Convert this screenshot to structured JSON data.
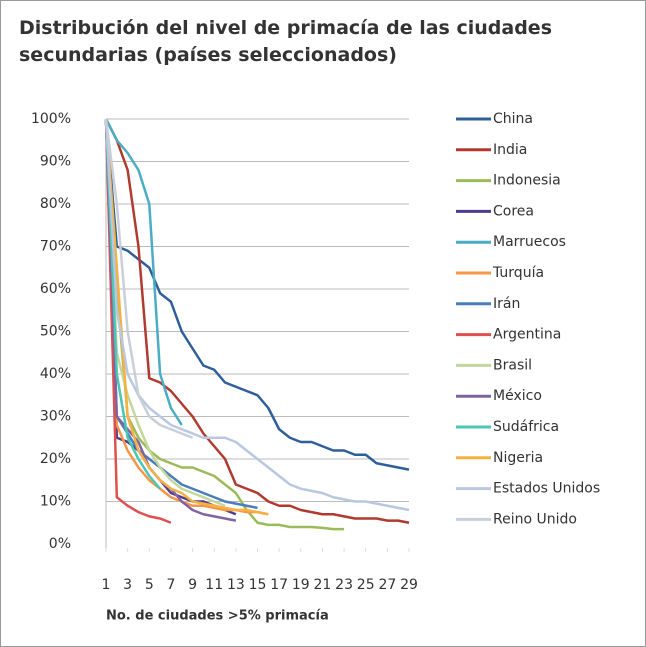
{
  "chart_data": {
    "type": "line",
    "title": "Distribución del nivel de primacía de las ciudades secundarias (países seleccionados)",
    "x_label": "No. de ciudades >5% primacía",
    "x": [
      1,
      2,
      3,
      4,
      5,
      6,
      7,
      8,
      9,
      10,
      11,
      12,
      13,
      14,
      15,
      16,
      17,
      18,
      19,
      20,
      21,
      22,
      23,
      24,
      25,
      26,
      27,
      28,
      29
    ],
    "xlim": [
      1,
      29
    ],
    "xticks": [
      1,
      3,
      5,
      7,
      9,
      11,
      13,
      15,
      17,
      19,
      21,
      23,
      25,
      27,
      29
    ],
    "ylim": [
      0,
      100
    ],
    "yticks": [
      {
        "value": 0,
        "label": "0%"
      },
      {
        "value": 10,
        "label": "10%"
      },
      {
        "value": 20,
        "label": "20%"
      },
      {
        "value": 30,
        "label": "30%"
      },
      {
        "value": 40,
        "label": "40%"
      },
      {
        "value": 50,
        "label": "50%"
      },
      {
        "value": 60,
        "label": "60%"
      },
      {
        "value": 70,
        "label": "70%"
      },
      {
        "value": 80,
        "label": "80%"
      },
      {
        "value": 90,
        "label": "90%"
      },
      {
        "value": 100,
        "label": "100%"
      }
    ],
    "grid": true,
    "legend": "right",
    "series": [
      {
        "name": "China",
        "color": "#2e5f9b",
        "values": [
          100,
          70,
          69,
          67,
          65,
          59,
          57,
          50,
          46,
          42,
          41,
          38,
          37,
          36,
          35,
          32,
          27,
          25,
          24,
          24,
          23,
          22,
          22,
          21,
          21,
          19,
          18.5,
          18,
          17.5
        ]
      },
      {
        "name": "India",
        "color": "#b03a2e",
        "values": [
          100,
          95,
          88,
          70,
          39,
          38,
          36,
          33,
          30,
          26,
          23,
          20,
          14,
          13,
          12,
          10,
          9,
          9,
          8,
          7.5,
          7,
          7,
          6.5,
          6,
          6,
          6,
          5.5,
          5.5,
          5
        ]
      },
      {
        "name": "Indonesia",
        "color": "#9bbb59",
        "values": [
          100,
          60,
          30,
          25,
          22,
          20,
          19,
          18,
          18,
          17,
          16,
          14,
          12,
          8,
          5,
          4.5,
          4.5,
          4,
          4,
          4,
          3.8,
          3.5,
          3.5,
          null,
          null,
          null,
          null,
          null,
          null
        ]
      },
      {
        "name": "Corea",
        "color": "#4f3c8f",
        "values": [
          100,
          25,
          24,
          22,
          18,
          15,
          12,
          11,
          10,
          10,
          9,
          8,
          7,
          null,
          null,
          null,
          null,
          null,
          null,
          null,
          null,
          null,
          null,
          null,
          null,
          null,
          null,
          null,
          null
        ]
      },
      {
        "name": "Marruecos",
        "color": "#4bacc6",
        "values": [
          100,
          95,
          92,
          88,
          80,
          40,
          32,
          28,
          null,
          null,
          null,
          null,
          null,
          null,
          null,
          null,
          null,
          null,
          null,
          null,
          null,
          null,
          null,
          null,
          null,
          null,
          null,
          null,
          null
        ]
      },
      {
        "name": "Turquía",
        "color": "#f79646",
        "values": [
          100,
          28,
          22,
          18,
          15,
          13,
          11,
          10,
          9,
          9,
          8.5,
          8,
          8,
          7.5,
          7.5,
          7,
          null,
          null,
          null,
          null,
          null,
          null,
          null,
          null,
          null,
          null,
          null,
          null,
          null
        ]
      },
      {
        "name": "Irán",
        "color": "#4a7ebb",
        "values": [
          100,
          30,
          26,
          22,
          20,
          18,
          16,
          14,
          13,
          12,
          11,
          10,
          9.5,
          9,
          8.5,
          null,
          null,
          null,
          null,
          null,
          null,
          null,
          null,
          null,
          null,
          null,
          null,
          null,
          null
        ]
      },
      {
        "name": "Argentina",
        "color": "#e04f4f",
        "values": [
          100,
          11,
          9,
          7.5,
          6.5,
          6,
          5,
          null,
          null,
          null,
          null,
          null,
          null,
          null,
          null,
          null,
          null,
          null,
          null,
          null,
          null,
          null,
          null,
          null,
          null,
          null,
          null,
          null,
          null
        ]
      },
      {
        "name": "Brasil",
        "color": "#c3d69b",
        "values": [
          100,
          45,
          35,
          28,
          22,
          18,
          15,
          13,
          12,
          11,
          10,
          9,
          null,
          null,
          null,
          null,
          null,
          null,
          null,
          null,
          null,
          null,
          null,
          null,
          null,
          null,
          null,
          null,
          null
        ]
      },
      {
        "name": "México",
        "color": "#8064a2",
        "values": [
          100,
          30,
          27,
          24,
          18,
          15,
          13,
          10,
          8,
          7,
          6.5,
          6,
          5.5,
          null,
          null,
          null,
          null,
          null,
          null,
          null,
          null,
          null,
          null,
          null,
          null,
          null,
          null,
          null,
          null
        ]
      },
      {
        "name": "Sudáfrica",
        "color": "#4bc6b4",
        "values": [
          100,
          40,
          25,
          20,
          16,
          13,
          null,
          null,
          null,
          null,
          null,
          null,
          null,
          null,
          null,
          null,
          null,
          null,
          null,
          null,
          null,
          null,
          null,
          null,
          null,
          null,
          null,
          null,
          null
        ]
      },
      {
        "name": "Nigeria",
        "color": "#f6b142",
        "values": [
          100,
          65,
          30,
          22,
          18,
          15,
          13,
          12,
          10,
          9.5,
          9,
          8.5,
          8,
          8,
          7.5,
          7,
          null,
          null,
          null,
          null,
          null,
          null,
          null,
          null,
          null,
          null,
          null,
          null,
          null
        ]
      },
      {
        "name": "Estados Unidos",
        "color": "#b9c7e0",
        "values": [
          100,
          55,
          40,
          35,
          32,
          30,
          28,
          27,
          26,
          25,
          25,
          25,
          24,
          22,
          20,
          18,
          16,
          14,
          13,
          12.5,
          12,
          11,
          10.5,
          10,
          10,
          9.5,
          9,
          8.5,
          8
        ]
      },
      {
        "name": "Reino Unido",
        "color": "#c8cfd8",
        "values": [
          100,
          80,
          50,
          35,
          30,
          28,
          27,
          26,
          25,
          null,
          null,
          null,
          null,
          null,
          null,
          null,
          null,
          null,
          null,
          null,
          null,
          null,
          null,
          null,
          null,
          null,
          null,
          null,
          null
        ]
      }
    ]
  }
}
